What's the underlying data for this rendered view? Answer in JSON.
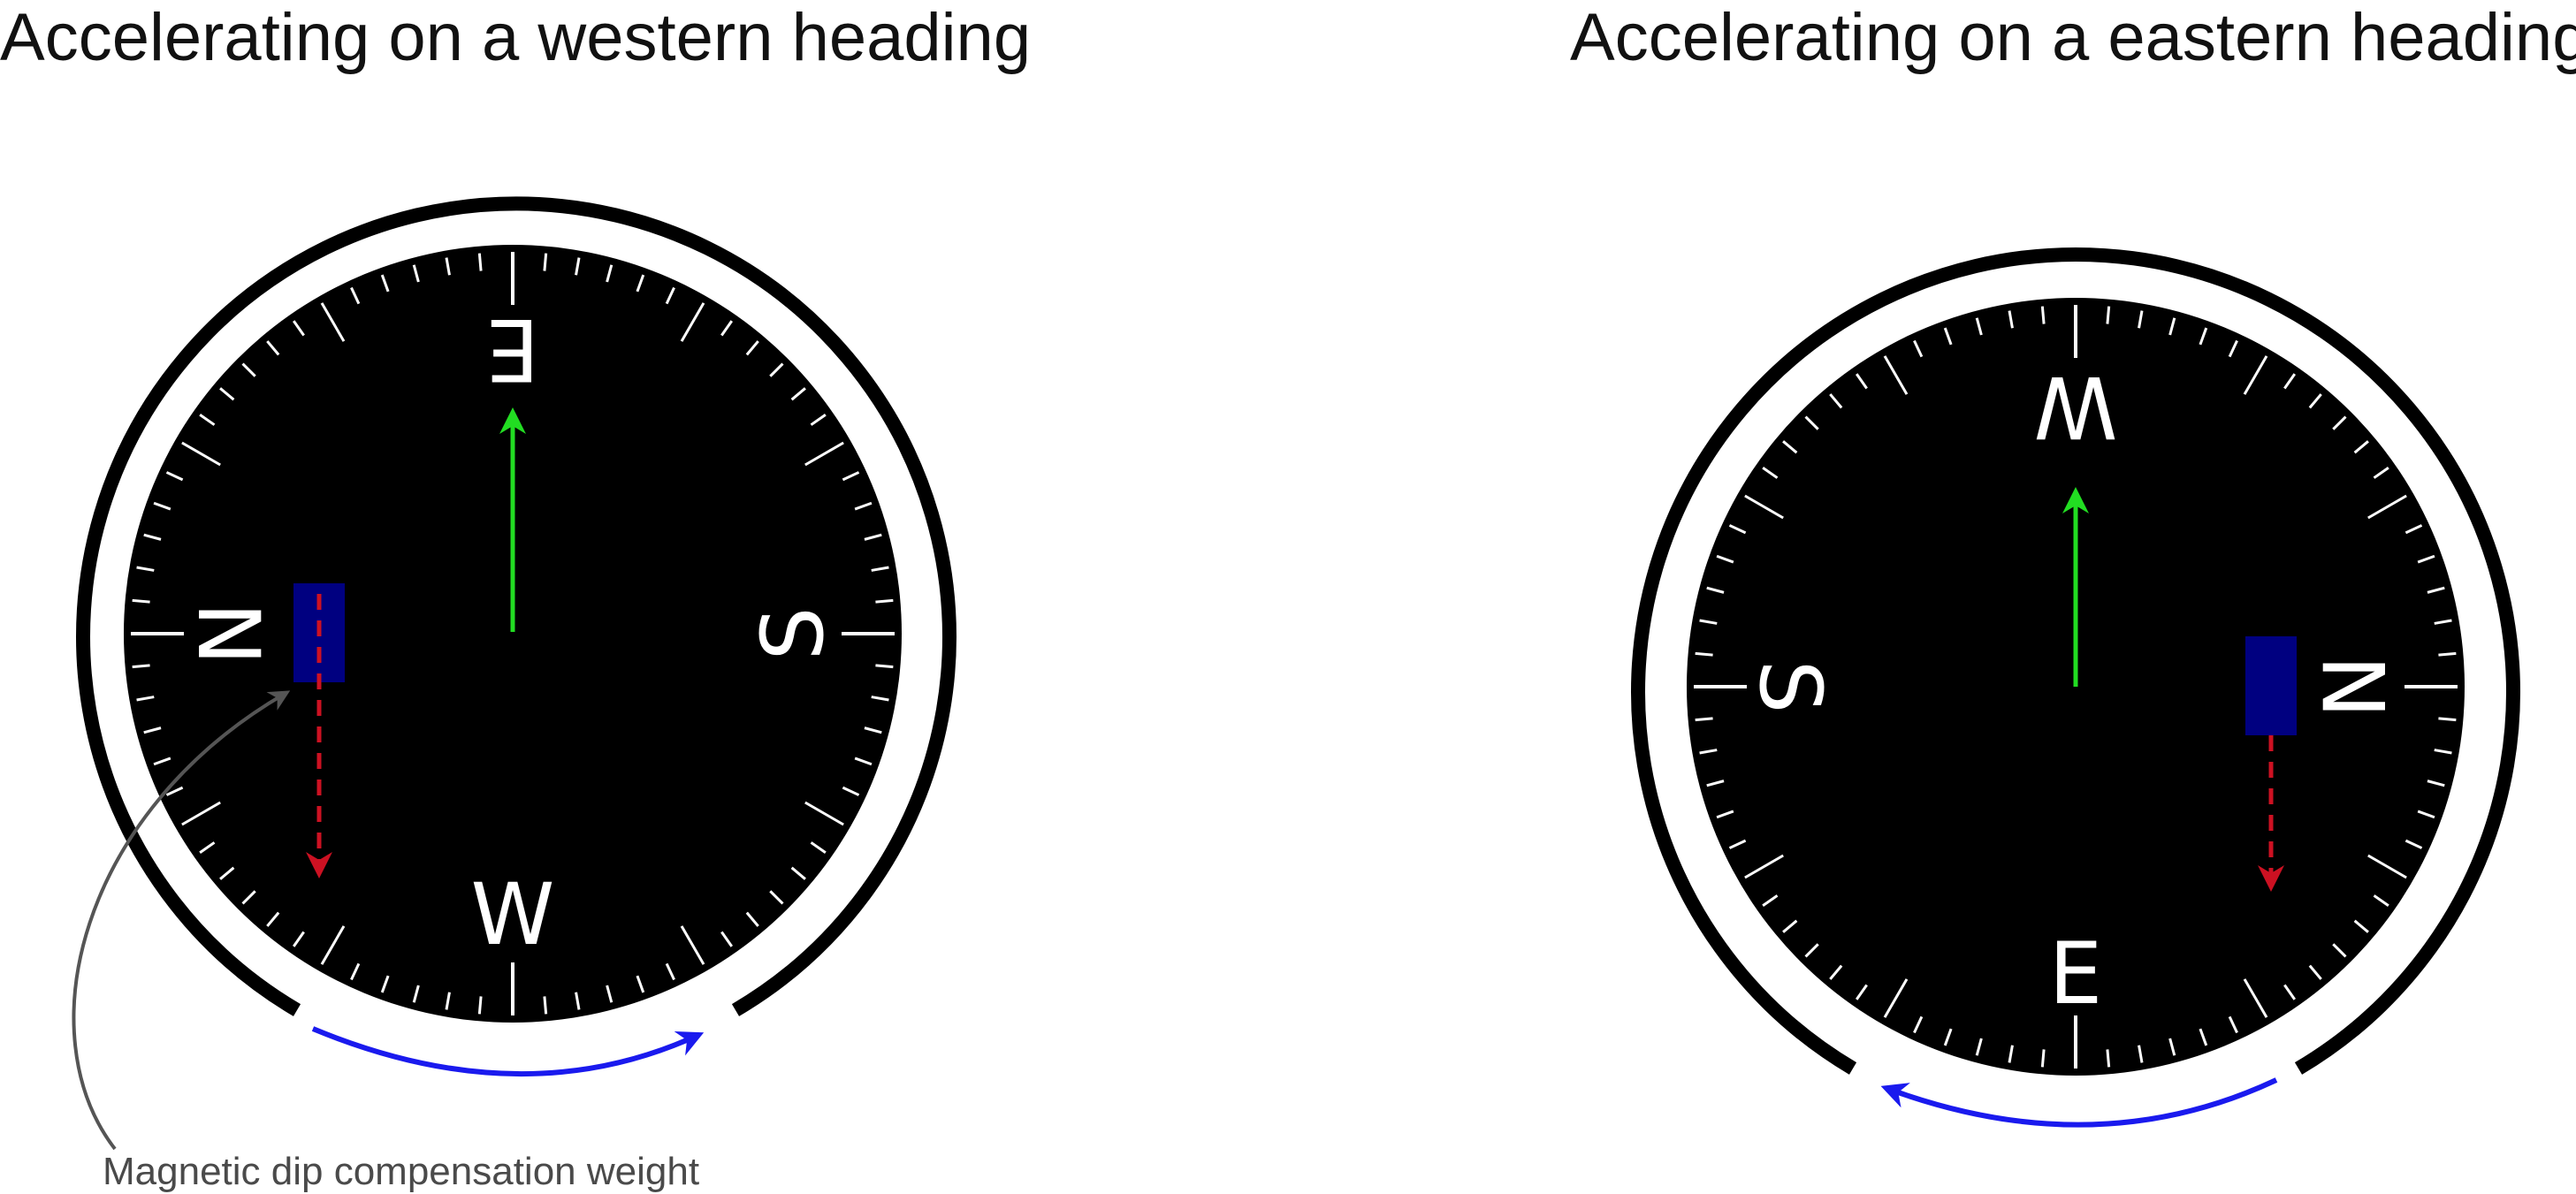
{
  "panels": [
    {
      "title": "Accelerating on a western heading",
      "cardinals": {
        "top": "E",
        "right": "S",
        "bottom": "W",
        "left": "N"
      },
      "rotation_direction": "clockwise"
    },
    {
      "title": "Accelerating on a eastern heading",
      "cardinals": {
        "top": "W",
        "right": "N",
        "bottom": "E",
        "left": "S"
      },
      "rotation_direction": "counter-clockwise"
    }
  ],
  "callout": {
    "label": "Magnetic dip compensation weight"
  },
  "colors": {
    "dial": "#000000",
    "ticks": "#ffffff",
    "bezel": "#000000",
    "acceleration_arrow": "#22dd22",
    "weight": "#000080",
    "dip_force_arrow": "#cc1122",
    "rotation_arrow": "#1a1aee",
    "callout_line": "#555555"
  },
  "icons": {
    "weight": "compensation-weight-block",
    "acceleration": "green-arrow-up",
    "dip": "red-dashed-arrow-down",
    "rotation": "blue-curved-arrow"
  }
}
